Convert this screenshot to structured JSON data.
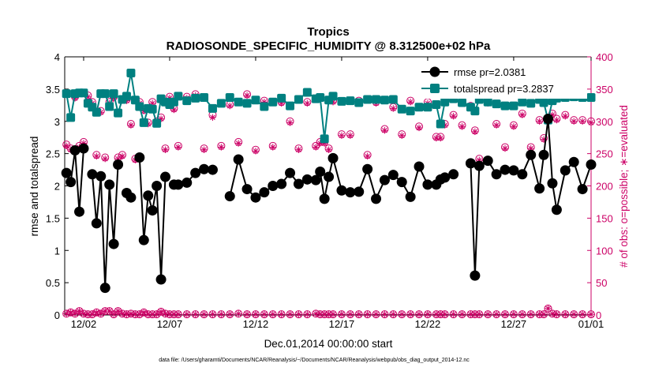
{
  "chart_data": {
    "type": "line",
    "title": "Tropics",
    "subtitle": "RADIOSONDE_SPECIFIC_HUMIDITY @ 8.312500e+02 hPa",
    "xlabel": "Dec.01,2014 00:00:00 start",
    "ylabel": "rmse and totalspread",
    "y2label": "# of obs: o=possible; ∗=evaluated",
    "footer": "data file: /Users/gharamti/Documents/NCAR/Reanalysis/~/Documents/NCAR/Reanalysis/webpub/obs_diag_output_2014-12.nc",
    "xlim": [
      0.4,
      31.0
    ],
    "ylim": [
      0,
      4
    ],
    "y2lim": [
      0,
      400
    ],
    "x_ticks": [
      1.5,
      6.5,
      11.5,
      16.5,
      21.5,
      26.5,
      31.0
    ],
    "x_tick_labels": [
      "12/02",
      "12/07",
      "12/12",
      "12/17",
      "12/22",
      "12/27",
      "01/01"
    ],
    "y_ticks": [
      0,
      0.5,
      1,
      1.5,
      2,
      2.5,
      3,
      3.5,
      4
    ],
    "y_tick_labels": [
      "0",
      "0.5",
      "1",
      "1.5",
      "2",
      "2.5",
      "3",
      "3.5",
      "4"
    ],
    "y2_ticks": [
      0,
      50,
      100,
      150,
      200,
      250,
      300,
      350,
      400
    ],
    "y2_tick_labels": [
      "0",
      "50",
      "100",
      "150",
      "200",
      "250",
      "300",
      "350",
      "400"
    ],
    "legend_placement": "top-right",
    "colors": {
      "rmse": "#000000",
      "totalspread": "#008080",
      "obs": "#cc0066",
      "right_axis": "#cc0066"
    },
    "series": [
      {
        "name": "rmse pr=2.0381",
        "axis": "left",
        "x": [
          0.5,
          0.75,
          1,
          1.25,
          1.5,
          1.75,
          2,
          2.25,
          2.5,
          2.75,
          3,
          3.25,
          3.5,
          3.75,
          4,
          4.25,
          4.5,
          4.75,
          5,
          5.25,
          5.5,
          5.75,
          6,
          6.25,
          6.5,
          6.75,
          7,
          7.5,
          8,
          8.5,
          9,
          9.5,
          10,
          10.5,
          11,
          11.5,
          12,
          12.5,
          13,
          13.5,
          14,
          14.5,
          15,
          15.25,
          15.5,
          15.75,
          16,
          16.5,
          17,
          17.5,
          18,
          18.5,
          19,
          19.5,
          20,
          20.5,
          21,
          21.5,
          22,
          22.25,
          22.5,
          23,
          23.5,
          24,
          24.25,
          24.5,
          25,
          25.5,
          26,
          26.5,
          27,
          27.5,
          28,
          28.25,
          28.5,
          28.75,
          29,
          29.5,
          30,
          30.5,
          31
        ],
        "values": [
          2.2,
          2.06,
          2.55,
          1.6,
          2.58,
          null,
          2.18,
          1.42,
          2.15,
          0.42,
          2.02,
          1.1,
          2.33,
          null,
          1.89,
          1.82,
          null,
          2.44,
          1.16,
          1.85,
          1.62,
          2.0,
          0.55,
          2.14,
          null,
          2.02,
          2.02,
          2.05,
          2.2,
          2.26,
          2.25,
          null,
          1.84,
          2.41,
          1.95,
          1.82,
          1.9,
          2.0,
          2.03,
          2.2,
          2.03,
          2.1,
          2.09,
          2.22,
          1.8,
          2.14,
          2.43,
          1.93,
          1.9,
          1.91,
          2.26,
          1.8,
          2.09,
          2.17,
          2.06,
          1.83,
          2.3,
          2.02,
          2.02,
          2.1,
          2.13,
          2.18,
          null,
          2.35,
          0.61,
          2.31,
          2.39,
          2.18,
          2.25,
          2.24,
          2.18,
          2.48,
          1.96,
          2.48,
          3.04,
          2.04,
          1.63,
          2.24,
          2.37,
          1.95,
          2.33
        ],
        "breaks": "lines drawn only on densely-sampled segments"
      },
      {
        "name": "totalspread pr=3.2837",
        "axis": "left",
        "x": [
          0.5,
          0.75,
          1,
          1.25,
          1.5,
          1.75,
          2,
          2.25,
          2.5,
          2.75,
          3,
          3.25,
          3.5,
          3.75,
          4,
          4.25,
          4.5,
          4.75,
          5,
          5.25,
          5.5,
          5.75,
          6,
          6.25,
          6.5,
          6.75,
          7,
          7.5,
          8,
          8.5,
          9,
          9.5,
          10,
          10.5,
          11,
          11.5,
          12,
          12.5,
          13,
          13.5,
          14,
          14.5,
          15,
          15.25,
          15.5,
          15.75,
          16,
          16.5,
          17,
          17.5,
          18,
          18.5,
          19,
          19.5,
          20,
          20.5,
          21,
          21.5,
          22,
          22.25,
          22.5,
          23,
          23.5,
          24,
          24.25,
          24.5,
          25,
          25.5,
          26,
          26.5,
          27,
          27.5,
          28,
          28.25,
          28.5,
          28.75,
          29,
          29.5,
          30,
          30.5,
          31
        ],
        "values": [
          3.43,
          3.06,
          3.43,
          3.44,
          3.44,
          3.28,
          3.22,
          3.14,
          3.43,
          3.43,
          3.23,
          3.43,
          3.13,
          3.34,
          3.39,
          3.75,
          3.33,
          3.23,
          2.98,
          3.2,
          3.19,
          2.97,
          3.35,
          3.3,
          3.26,
          3.3,
          3.39,
          3.32,
          3.36,
          3.37,
          3.2,
          3.28,
          3.37,
          3.3,
          3.28,
          3.33,
          3.23,
          3.3,
          3.36,
          3.24,
          3.34,
          3.45,
          3.35,
          3.37,
          2.73,
          3.33,
          3.39,
          3.31,
          3.32,
          3.29,
          3.34,
          3.34,
          3.33,
          3.34,
          3.19,
          3.16,
          3.22,
          3.22,
          3.26,
          2.96,
          3.3,
          3.35,
          3.29,
          3.22,
          3.16,
          3.34,
          3.3,
          3.27,
          3.24,
          3.24,
          3.3,
          3.28,
          3.34,
          3.29,
          3.02,
          3.32,
          3.36,
          3.37,
          3.38,
          3.37,
          3.37
        ]
      },
      {
        "name": "obs possible",
        "axis": "right",
        "marker": "circle",
        "x": [
          0.5,
          0.75,
          1,
          1.25,
          1.5,
          1.75,
          2,
          2.25,
          2.5,
          2.75,
          3,
          3.25,
          3.5,
          3.75,
          4,
          4.25,
          4.5,
          4.75,
          5,
          5.25,
          5.5,
          5.75,
          6,
          6.25,
          6.5,
          6.75,
          7,
          7.5,
          8,
          8.5,
          9,
          9.5,
          10,
          10.5,
          11,
          11.5,
          12,
          12.5,
          13,
          13.5,
          14,
          14.5,
          15,
          15.25,
          15.5,
          15.75,
          16,
          16.5,
          17,
          17.5,
          18,
          18.5,
          19,
          19.5,
          20,
          20.5,
          21,
          21.5,
          22,
          22.25,
          22.5,
          23,
          23.5,
          24,
          24.25,
          24.5,
          25,
          25.5,
          26,
          26.5,
          27,
          27.5,
          28,
          28.25,
          28.5,
          28.75,
          29,
          29.5,
          30,
          30.5,
          31
        ],
        "values": [
          264,
          258,
          338,
          262,
          268,
          340,
          330,
          248,
          316,
          244,
          330,
          338,
          244,
          248,
          334,
          296,
          242,
          330,
          318,
          298,
          330,
          300,
          306,
          258,
          338,
          320,
          262,
          338,
          342,
          258,
          310,
          262,
          326,
          268,
          342,
          256,
          332,
          262,
          330,
          300,
          258,
          330,
          262,
          268,
          268,
          258,
          332,
          280,
          280,
          332,
          248,
          330,
          288,
          322,
          280,
          332,
          292,
          330,
          276,
          276,
          296,
          310,
          294,
          324,
          286,
          242,
          330,
          296,
          260,
          294,
          312,
          260,
          302,
          274,
          304,
          312,
          304,
          310,
          302,
          302,
          300
        ]
      },
      {
        "name": "obs evaluated",
        "axis": "right",
        "marker": "asterisk",
        "x": [
          0.5,
          0.75,
          1,
          1.25,
          1.5,
          1.75,
          2,
          2.25,
          2.5,
          2.75,
          3,
          3.25,
          3.5,
          3.75,
          4,
          4.25,
          4.5,
          4.75,
          5,
          5.25,
          5.5,
          5.75,
          6,
          6.25,
          6.5,
          6.75,
          7,
          7.5,
          8,
          8.5,
          9,
          9.5,
          10,
          10.5,
          11,
          11.5,
          12,
          12.5,
          13,
          13.5,
          14,
          14.5,
          15,
          15.25,
          15.5,
          15.75,
          16,
          16.5,
          17,
          17.5,
          18,
          18.5,
          19,
          19.5,
          20,
          20.5,
          21,
          21.5,
          22,
          22.25,
          22.5,
          23,
          23.5,
          24,
          24.25,
          24.5,
          25,
          25.5,
          26,
          26.5,
          27,
          27.5,
          28,
          28.25,
          28.5,
          28.75,
          29,
          29.5,
          30,
          30.5,
          31
        ],
        "values": [
          262,
          256,
          336,
          260,
          266,
          338,
          328,
          246,
          314,
          242,
          328,
          336,
          242,
          246,
          332,
          294,
          240,
          328,
          316,
          296,
          328,
          298,
          304,
          256,
          336,
          318,
          260,
          336,
          340,
          256,
          306,
          260,
          324,
          266,
          340,
          254,
          330,
          260,
          328,
          298,
          256,
          328,
          260,
          266,
          266,
          256,
          330,
          278,
          278,
          330,
          246,
          328,
          286,
          320,
          278,
          330,
          290,
          328,
          274,
          274,
          294,
          308,
          292,
          322,
          284,
          240,
          328,
          294,
          258,
          292,
          310,
          258,
          300,
          272,
          302,
          310,
          302,
          308,
          300,
          300,
          298
        ]
      },
      {
        "name": "obs possible (low)",
        "axis": "right",
        "marker": "circle",
        "x": [
          0.5,
          0.75,
          1,
          1.25,
          1.5,
          1.75,
          2,
          2.25,
          2.5,
          2.75,
          3,
          3.25,
          3.5,
          3.75,
          4,
          4.25,
          4.5,
          4.75,
          5,
          5.25,
          5.5,
          5.75,
          6,
          6.25,
          6.5,
          6.75,
          7,
          7.5,
          8,
          8.5,
          9,
          9.5,
          10,
          10.5,
          11,
          11.5,
          12,
          12.5,
          13,
          13.5,
          14,
          14.5,
          15,
          15.25,
          15.5,
          15.75,
          16,
          16.5,
          17,
          17.5,
          18,
          18.5,
          19,
          19.5,
          20,
          20.5,
          21,
          21.5,
          22,
          22.25,
          22.5,
          23,
          23.5,
          24,
          24.25,
          24.5,
          25,
          25.5,
          26,
          26.5,
          27,
          27.5,
          28,
          28.25,
          28.5,
          28.75,
          29,
          29.5,
          30,
          30.5,
          31
        ],
        "values": [
          2,
          4,
          2,
          6,
          2,
          1,
          1,
          4,
          2,
          6,
          6,
          1,
          6,
          2,
          1,
          2,
          1,
          1,
          4,
          1,
          1,
          1,
          5,
          2,
          1,
          1,
          1,
          1,
          1,
          1,
          1,
          1,
          1,
          2,
          1,
          1,
          1,
          1,
          1,
          1,
          1,
          1,
          2,
          1,
          1,
          1,
          1,
          1,
          1,
          1,
          1,
          1,
          1,
          1,
          1,
          1,
          1,
          1,
          1,
          1,
          1,
          1,
          1,
          1,
          1,
          1,
          1,
          1,
          1,
          1,
          1,
          1,
          1,
          1,
          10,
          2,
          1,
          1,
          1,
          1,
          1
        ]
      }
    ]
  }
}
